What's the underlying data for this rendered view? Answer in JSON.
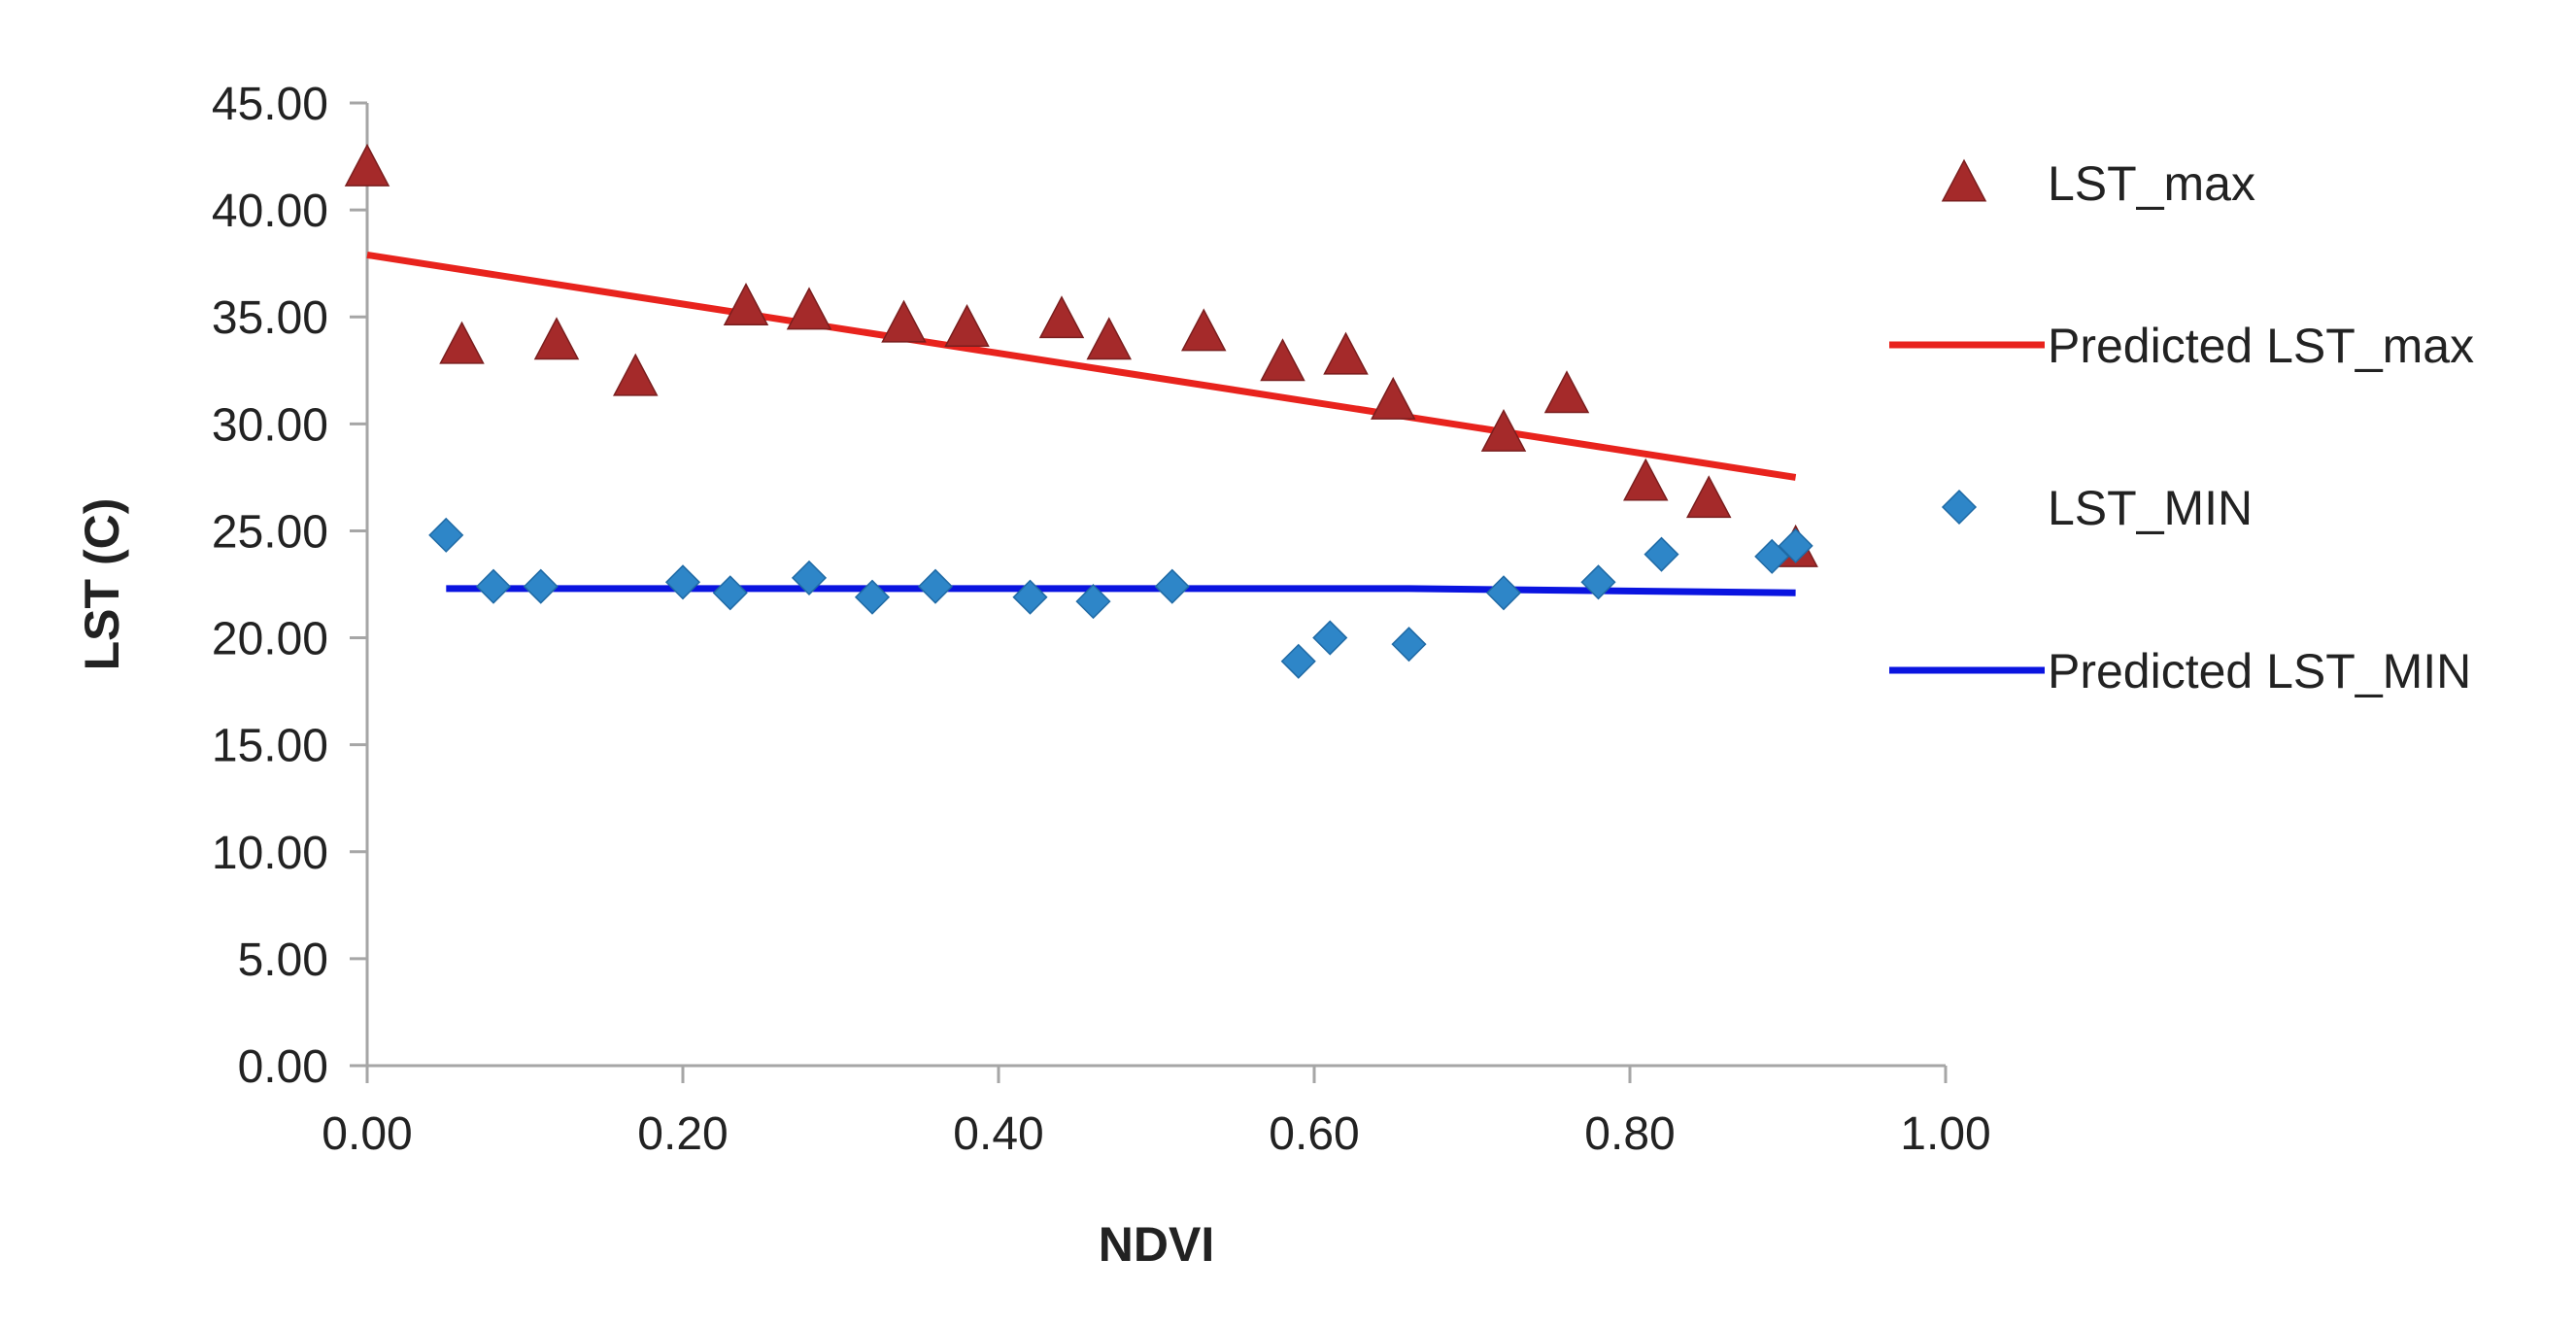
{
  "chart_data": {
    "type": "scatter",
    "title": "",
    "xlabel": "NDVI",
    "ylabel": "LST (C)",
    "xlim": [
      0,
      1
    ],
    "ylim": [
      0,
      45
    ],
    "x_ticks": [
      0,
      0.2,
      0.4,
      0.6,
      0.8,
      1.0
    ],
    "y_ticks": [
      0,
      5,
      10,
      15,
      20,
      25,
      30,
      35,
      40,
      45
    ],
    "x_tick_labels": [
      "0.00",
      "0.20",
      "0.40",
      "0.60",
      "0.80",
      "1.00"
    ],
    "y_tick_labels": [
      "0.00",
      "5.00",
      "10.00",
      "15.00",
      "20.00",
      "25.00",
      "30.00",
      "35.00",
      "40.00",
      "45.00"
    ],
    "grid": false,
    "legend_position": "right",
    "series": [
      {
        "name": "LST_max",
        "kind": "scatter",
        "marker": "triangle",
        "color": "#A52A2A",
        "x": [
          0.0,
          0.06,
          0.12,
          0.17,
          0.24,
          0.28,
          0.34,
          0.38,
          0.44,
          0.47,
          0.53,
          0.58,
          0.62,
          0.65,
          0.72,
          0.76,
          0.81,
          0.85,
          0.905
        ],
        "y": [
          41.9,
          33.6,
          33.8,
          32.1,
          35.4,
          35.2,
          34.6,
          34.4,
          34.8,
          33.8,
          34.2,
          32.8,
          33.1,
          31.0,
          29.5,
          31.3,
          27.2,
          26.4,
          24.1
        ]
      },
      {
        "name": "Predicted LST_max",
        "kind": "line",
        "color": "#E8231D",
        "x": [
          0.0,
          0.905
        ],
        "y": [
          37.9,
          27.5
        ]
      },
      {
        "name": "LST_MIN",
        "kind": "scatter",
        "marker": "diamond",
        "color": "#2E86C8",
        "x": [
          0.05,
          0.08,
          0.11,
          0.2,
          0.23,
          0.28,
          0.32,
          0.36,
          0.42,
          0.46,
          0.51,
          0.59,
          0.61,
          0.66,
          0.72,
          0.78,
          0.82,
          0.89,
          0.905
        ],
        "y": [
          24.8,
          22.4,
          22.4,
          22.6,
          22.1,
          22.8,
          21.9,
          22.4,
          21.9,
          21.7,
          22.4,
          18.9,
          20.0,
          19.7,
          22.1,
          22.6,
          23.9,
          23.8,
          24.3
        ]
      },
      {
        "name": "Predicted LST_MIN",
        "kind": "line",
        "color": "#0A14E0",
        "x": [
          0.05,
          0.66,
          0.905
        ],
        "y": [
          22.3,
          22.3,
          22.1
        ]
      }
    ]
  }
}
